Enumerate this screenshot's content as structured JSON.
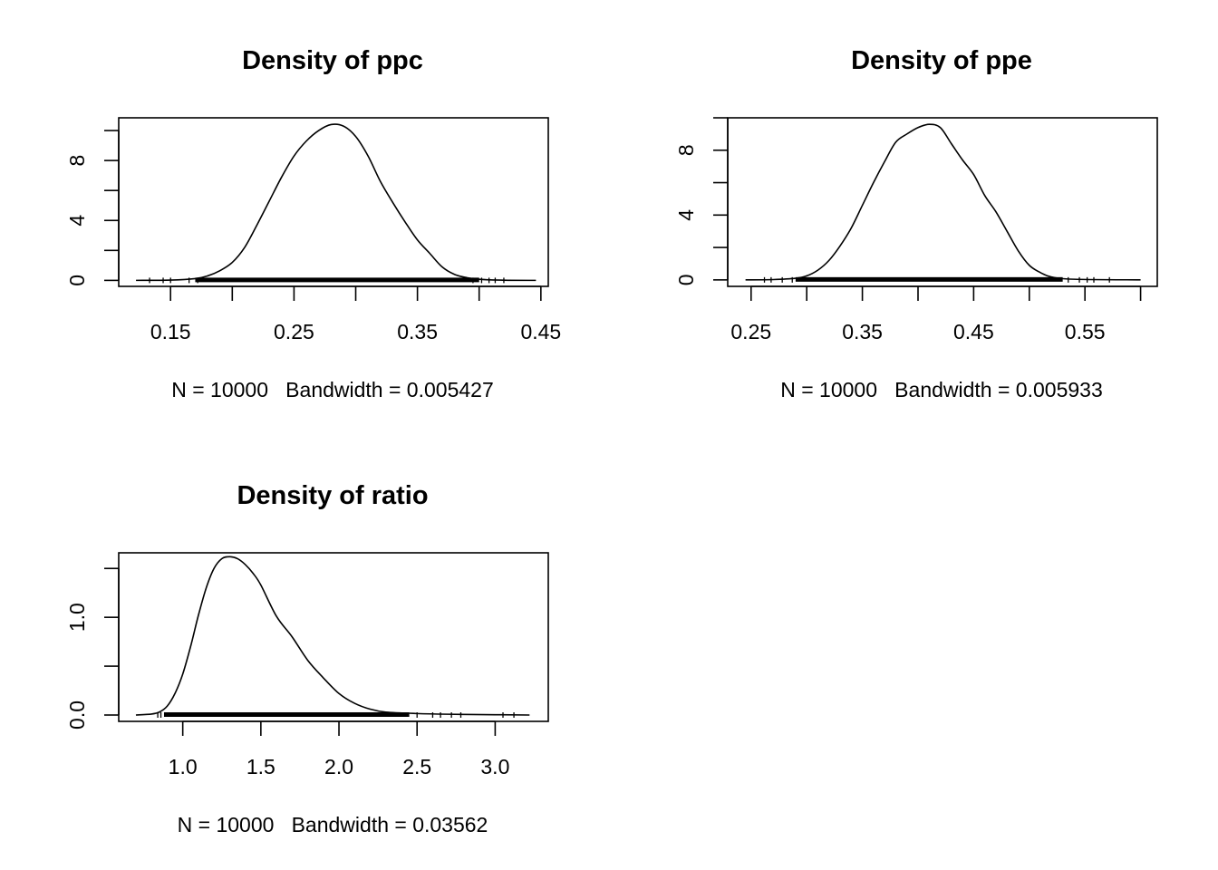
{
  "chart_data": [
    {
      "type": "line",
      "title": "Density of ppc",
      "xlabel": "N = 10000   Bandwidth = 0.005427",
      "ylabel": "",
      "xlim": [
        0.108,
        0.456
      ],
      "ylim": [
        -0.4,
        10.85
      ],
      "xticks": [
        0.15,
        0.2,
        0.25,
        0.3,
        0.35,
        0.4,
        0.45
      ],
      "xtick_labels": [
        "0.15",
        "",
        "0.25",
        "",
        "0.35",
        "",
        "0.45"
      ],
      "yticks": [
        0,
        2,
        4,
        6,
        8,
        10
      ],
      "ytick_labels": [
        "0",
        "",
        "4",
        "",
        "8",
        ""
      ],
      "rug": {
        "from": 0.17,
        "to": 0.4,
        "sparse": [
          0.133,
          0.144,
          0.15,
          0.165,
          0.172,
          0.395,
          0.402,
          0.408,
          0.413,
          0.42
        ]
      },
      "series": [
        {
          "x": [
            0.122,
            0.15,
            0.17,
            0.18,
            0.19,
            0.2,
            0.21,
            0.22,
            0.23,
            0.24,
            0.25,
            0.26,
            0.27,
            0.28,
            0.29,
            0.3,
            0.31,
            0.32,
            0.33,
            0.34,
            0.35,
            0.36,
            0.37,
            0.38,
            0.39,
            0.4,
            0.42,
            0.446
          ],
          "y": [
            0.0,
            0.02,
            0.12,
            0.3,
            0.65,
            1.2,
            2.2,
            3.7,
            5.3,
            6.9,
            8.3,
            9.3,
            10.0,
            10.4,
            10.3,
            9.6,
            8.3,
            6.6,
            5.2,
            3.9,
            2.7,
            1.8,
            0.9,
            0.4,
            0.18,
            0.07,
            0.01,
            0.0
          ]
        }
      ]
    },
    {
      "type": "line",
      "title": "Density of ppe",
      "xlabel": "N = 10000   Bandwidth = 0.005933",
      "ylabel": "",
      "xlim": [
        0.229,
        0.615
      ],
      "ylim": [
        -0.4,
        10.0
      ],
      "xticks": [
        0.25,
        0.3,
        0.35,
        0.4,
        0.45,
        0.5,
        0.55,
        0.6
      ],
      "xtick_labels": [
        "0.25",
        "",
        "0.35",
        "",
        "0.45",
        "",
        "0.55",
        ""
      ],
      "yticks": [
        0,
        2,
        4,
        6,
        8,
        10
      ],
      "ytick_labels": [
        "0",
        "",
        "4",
        "",
        "8",
        ""
      ],
      "rug": {
        "from": 0.29,
        "to": 0.53,
        "sparse": [
          0.262,
          0.268,
          0.278,
          0.287,
          0.535,
          0.545,
          0.552,
          0.558,
          0.572
        ]
      },
      "series": [
        {
          "x": [
            0.245,
            0.27,
            0.29,
            0.3,
            0.31,
            0.32,
            0.33,
            0.34,
            0.35,
            0.36,
            0.37,
            0.38,
            0.39,
            0.4,
            0.41,
            0.42,
            0.43,
            0.44,
            0.45,
            0.46,
            0.47,
            0.48,
            0.49,
            0.5,
            0.51,
            0.52,
            0.54,
            0.6
          ],
          "y": [
            0.0,
            0.02,
            0.1,
            0.25,
            0.6,
            1.2,
            2.1,
            3.2,
            4.6,
            6.0,
            7.3,
            8.5,
            9.0,
            9.4,
            9.6,
            9.4,
            8.4,
            7.4,
            6.5,
            5.2,
            4.2,
            3.0,
            1.8,
            0.9,
            0.45,
            0.18,
            0.04,
            0.0
          ]
        }
      ]
    },
    {
      "type": "line",
      "title": "Density of ratio",
      "xlabel": "N = 10000   Bandwidth = 0.03562",
      "ylabel": "",
      "xlim": [
        0.59,
        3.34
      ],
      "ylim": [
        -0.065,
        1.66
      ],
      "xticks": [
        1.0,
        1.5,
        2.0,
        2.5,
        3.0
      ],
      "xtick_labels": [
        "1.0",
        "1.5",
        "2.0",
        "2.5",
        "3.0"
      ],
      "yticks": [
        0,
        0.5,
        1.0,
        1.5
      ],
      "ytick_labels": [
        "0.0",
        "",
        "1.0",
        ""
      ],
      "rug": {
        "from": 0.88,
        "to": 2.45,
        "sparse": [
          0.84,
          0.86,
          2.5,
          2.6,
          2.65,
          2.72,
          2.78,
          3.05,
          3.12
        ]
      },
      "series": [
        {
          "x": [
            0.7,
            0.8,
            0.85,
            0.9,
            0.95,
            1.0,
            1.05,
            1.1,
            1.15,
            1.2,
            1.25,
            1.3,
            1.35,
            1.4,
            1.45,
            1.5,
            1.6,
            1.7,
            1.8,
            1.9,
            2.0,
            2.1,
            2.2,
            2.3,
            2.5,
            2.7,
            3.0,
            3.22
          ],
          "y": [
            0.0,
            0.01,
            0.03,
            0.09,
            0.22,
            0.42,
            0.7,
            1.02,
            1.3,
            1.5,
            1.6,
            1.62,
            1.6,
            1.54,
            1.45,
            1.33,
            1.01,
            0.8,
            0.56,
            0.38,
            0.22,
            0.12,
            0.06,
            0.03,
            0.015,
            0.008,
            0.003,
            0.0
          ]
        }
      ]
    }
  ]
}
